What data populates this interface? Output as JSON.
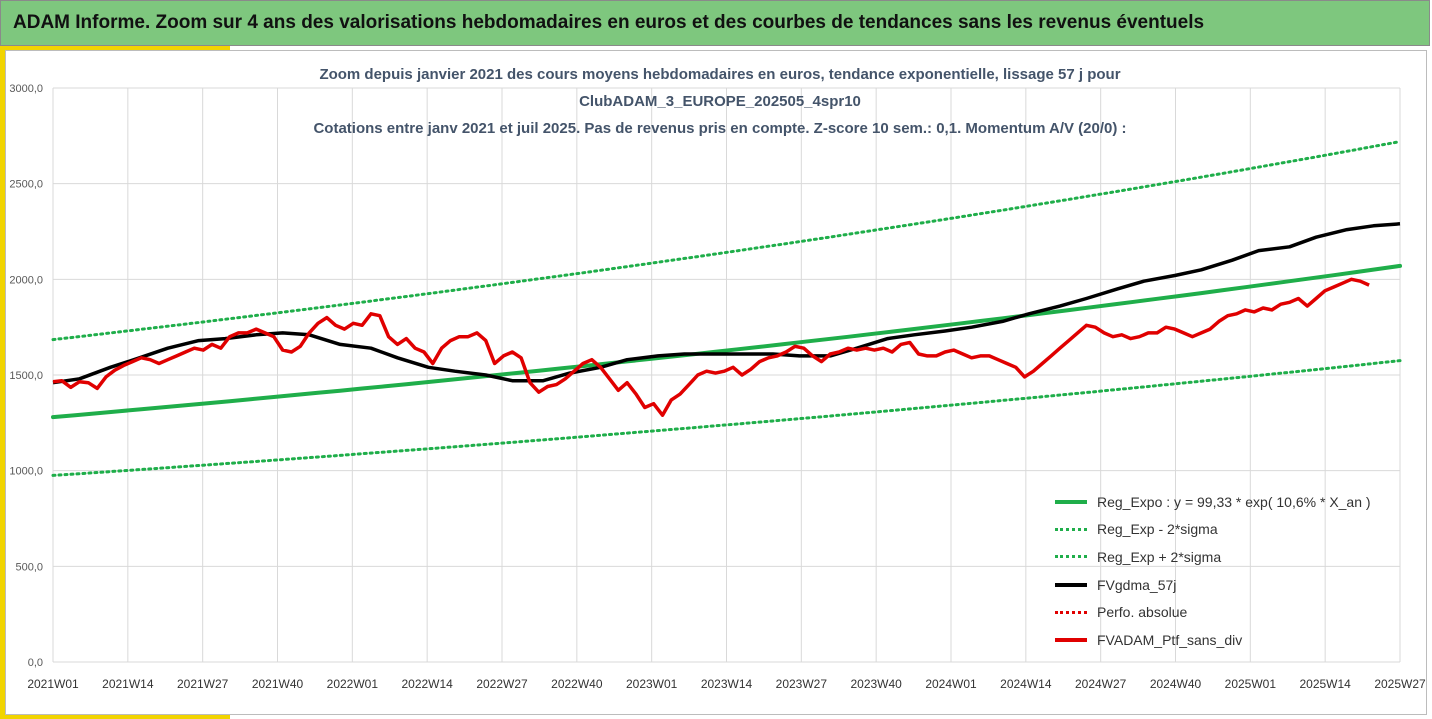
{
  "header": {
    "title": "ADAM Informe. Zoom sur 4 ans des valorisations hebdomadaires en euros et des courbes de tendances sans les revenus éventuels"
  },
  "colors": {
    "header_bg": "#7ec77e",
    "accent": "#f1d400",
    "trend": "#1fae4a",
    "smooth": "#000000",
    "price": "#e00000",
    "subtitle": "#44546a"
  },
  "chart_data": {
    "type": "line",
    "title_lines": [
      "Zoom depuis janvier 2021 des cours moyens hebdomadaires  en euros, tendance exponentielle, lissage 57 j pour",
      "ClubADAM_3_EUROPE_202505_4spr10",
      "Cotations entre janv 2021 et juil 2025. Pas de revenus pris en compte. Z-score 10 sem.: 0,1. Momentum A/V (20/0) :"
    ],
    "ylim": [
      0,
      3000
    ],
    "yticks": [
      "0,0",
      "500,0",
      "1000,0",
      "1500,0",
      "2000,0",
      "2500,0",
      "3000,0"
    ],
    "xticks": [
      "2021W01",
      "2021W14",
      "2021W27",
      "2021W40",
      "2022W01",
      "2022W14",
      "2022W27",
      "2022W40",
      "2023W01",
      "2023W14",
      "2023W27",
      "2023W40",
      "2024W01",
      "2024W14",
      "2024W27",
      "2024W40",
      "2025W01",
      "2025W14",
      "2025W27"
    ],
    "grid": true,
    "legend_position": "bottom-right",
    "series": [
      {
        "name": "Reg_Expo : y = 99,33 * exp( 10,6% *  X_an )",
        "style": "solid",
        "color": "#1fae4a",
        "type": "trend",
        "start": 1280,
        "end": 2070
      },
      {
        "name": "Reg_Exp - 2*sigma",
        "style": "dotted",
        "color": "#1fae4a",
        "type": "trend",
        "start": 975,
        "end": 1575
      },
      {
        "name": "Reg_Exp + 2*sigma",
        "style": "dotted",
        "color": "#1fae4a",
        "type": "trend",
        "start": 1685,
        "end": 2720
      },
      {
        "name": "FVgdma_57j",
        "style": "solid",
        "color": "#000000",
        "type": "points",
        "points": [
          [
            0,
            1460
          ],
          [
            6,
            1480
          ],
          [
            13,
            1540
          ],
          [
            19,
            1585
          ],
          [
            26,
            1640
          ],
          [
            33,
            1680
          ],
          [
            39,
            1690
          ],
          [
            46,
            1710
          ],
          [
            52,
            1720
          ],
          [
            58,
            1710
          ],
          [
            65,
            1660
          ],
          [
            72,
            1640
          ],
          [
            78,
            1590
          ],
          [
            85,
            1540
          ],
          [
            91,
            1520
          ],
          [
            98,
            1500
          ],
          [
            104,
            1470
          ],
          [
            111,
            1470
          ],
          [
            117,
            1510
          ],
          [
            124,
            1540
          ],
          [
            130,
            1580
          ],
          [
            137,
            1600
          ],
          [
            143,
            1610
          ],
          [
            150,
            1610
          ],
          [
            156,
            1610
          ],
          [
            163,
            1610
          ],
          [
            169,
            1600
          ],
          [
            176,
            1600
          ],
          [
            182,
            1640
          ],
          [
            189,
            1690
          ],
          [
            195,
            1710
          ],
          [
            202,
            1730
          ],
          [
            208,
            1750
          ],
          [
            215,
            1780
          ],
          [
            221,
            1820
          ],
          [
            228,
            1860
          ],
          [
            234,
            1900
          ],
          [
            241,
            1950
          ],
          [
            247,
            1990
          ],
          [
            254,
            2020
          ],
          [
            260,
            2050
          ],
          [
            267,
            2100
          ],
          [
            273,
            2150
          ],
          [
            280,
            2170
          ],
          [
            286,
            2220
          ],
          [
            293,
            2260
          ],
          [
            299,
            2280
          ],
          [
            305,
            2290
          ]
        ]
      },
      {
        "name": "Perfo. absolue",
        "style": "dotted",
        "color": "#e00000",
        "type": "none"
      },
      {
        "name": "FVADAM_Ptf_sans_div",
        "style": "solid",
        "color": "#e00000",
        "type": "points",
        "points": [
          [
            0,
            1465
          ],
          [
            2,
            1470
          ],
          [
            4,
            1435
          ],
          [
            6,
            1465
          ],
          [
            8,
            1460
          ],
          [
            10,
            1430
          ],
          [
            12,
            1490
          ],
          [
            14,
            1525
          ],
          [
            16,
            1550
          ],
          [
            18,
            1570
          ],
          [
            20,
            1590
          ],
          [
            22,
            1580
          ],
          [
            24,
            1560
          ],
          [
            26,
            1580
          ],
          [
            28,
            1600
          ],
          [
            30,
            1620
          ],
          [
            32,
            1640
          ],
          [
            34,
            1630
          ],
          [
            36,
            1660
          ],
          [
            38,
            1640
          ],
          [
            40,
            1700
          ],
          [
            42,
            1720
          ],
          [
            44,
            1720
          ],
          [
            46,
            1740
          ],
          [
            48,
            1720
          ],
          [
            50,
            1700
          ],
          [
            52,
            1630
          ],
          [
            54,
            1620
          ],
          [
            56,
            1650
          ],
          [
            58,
            1720
          ],
          [
            60,
            1770
          ],
          [
            62,
            1800
          ],
          [
            64,
            1760
          ],
          [
            66,
            1740
          ],
          [
            68,
            1770
          ],
          [
            70,
            1760
          ],
          [
            72,
            1820
          ],
          [
            74,
            1810
          ],
          [
            76,
            1700
          ],
          [
            78,
            1660
          ],
          [
            80,
            1690
          ],
          [
            82,
            1640
          ],
          [
            84,
            1620
          ],
          [
            86,
            1560
          ],
          [
            88,
            1640
          ],
          [
            90,
            1680
          ],
          [
            92,
            1700
          ],
          [
            94,
            1700
          ],
          [
            96,
            1720
          ],
          [
            98,
            1680
          ],
          [
            100,
            1560
          ],
          [
            102,
            1600
          ],
          [
            104,
            1620
          ],
          [
            106,
            1590
          ],
          [
            108,
            1460
          ],
          [
            110,
            1410
          ],
          [
            112,
            1440
          ],
          [
            114,
            1450
          ],
          [
            116,
            1480
          ],
          [
            118,
            1520
          ],
          [
            120,
            1560
          ],
          [
            122,
            1580
          ],
          [
            124,
            1540
          ],
          [
            126,
            1480
          ],
          [
            128,
            1420
          ],
          [
            130,
            1460
          ],
          [
            132,
            1400
          ],
          [
            134,
            1330
          ],
          [
            136,
            1350
          ],
          [
            138,
            1290
          ],
          [
            140,
            1370
          ],
          [
            142,
            1400
          ],
          [
            144,
            1450
          ],
          [
            146,
            1500
          ],
          [
            148,
            1520
          ],
          [
            150,
            1510
          ],
          [
            152,
            1520
          ],
          [
            154,
            1540
          ],
          [
            156,
            1500
          ],
          [
            158,
            1530
          ],
          [
            160,
            1570
          ],
          [
            162,
            1590
          ],
          [
            164,
            1600
          ],
          [
            166,
            1620
          ],
          [
            168,
            1650
          ],
          [
            170,
            1640
          ],
          [
            172,
            1600
          ],
          [
            174,
            1570
          ],
          [
            176,
            1610
          ],
          [
            178,
            1620
          ],
          [
            180,
            1640
          ],
          [
            182,
            1630
          ],
          [
            184,
            1640
          ],
          [
            186,
            1630
          ],
          [
            188,
            1640
          ],
          [
            190,
            1620
          ],
          [
            192,
            1660
          ],
          [
            194,
            1670
          ],
          [
            196,
            1610
          ],
          [
            198,
            1600
          ],
          [
            200,
            1600
          ],
          [
            202,
            1620
          ],
          [
            204,
            1630
          ],
          [
            206,
            1610
          ],
          [
            208,
            1590
          ],
          [
            210,
            1600
          ],
          [
            212,
            1600
          ],
          [
            214,
            1580
          ],
          [
            216,
            1560
          ],
          [
            218,
            1540
          ],
          [
            220,
            1490
          ],
          [
            222,
            1520
          ],
          [
            224,
            1560
          ],
          [
            226,
            1600
          ],
          [
            228,
            1640
          ],
          [
            230,
            1680
          ],
          [
            232,
            1720
          ],
          [
            234,
            1760
          ],
          [
            236,
            1750
          ],
          [
            238,
            1720
          ],
          [
            240,
            1700
          ],
          [
            242,
            1710
          ],
          [
            244,
            1690
          ],
          [
            246,
            1700
          ],
          [
            248,
            1720
          ],
          [
            250,
            1720
          ],
          [
            252,
            1750
          ],
          [
            254,
            1740
          ],
          [
            256,
            1720
          ],
          [
            258,
            1700
          ],
          [
            260,
            1720
          ],
          [
            262,
            1740
          ],
          [
            264,
            1780
          ],
          [
            266,
            1810
          ],
          [
            268,
            1820
          ],
          [
            270,
            1840
          ],
          [
            272,
            1830
          ],
          [
            274,
            1850
          ],
          [
            276,
            1840
          ],
          [
            278,
            1870
          ],
          [
            280,
            1880
          ],
          [
            282,
            1900
          ],
          [
            284,
            1860
          ],
          [
            286,
            1900
          ],
          [
            288,
            1940
          ],
          [
            290,
            1960
          ],
          [
            292,
            1980
          ],
          [
            294,
            2000
          ],
          [
            296,
            1990
          ],
          [
            298,
            1970
          ]
        ]
      }
    ]
  }
}
